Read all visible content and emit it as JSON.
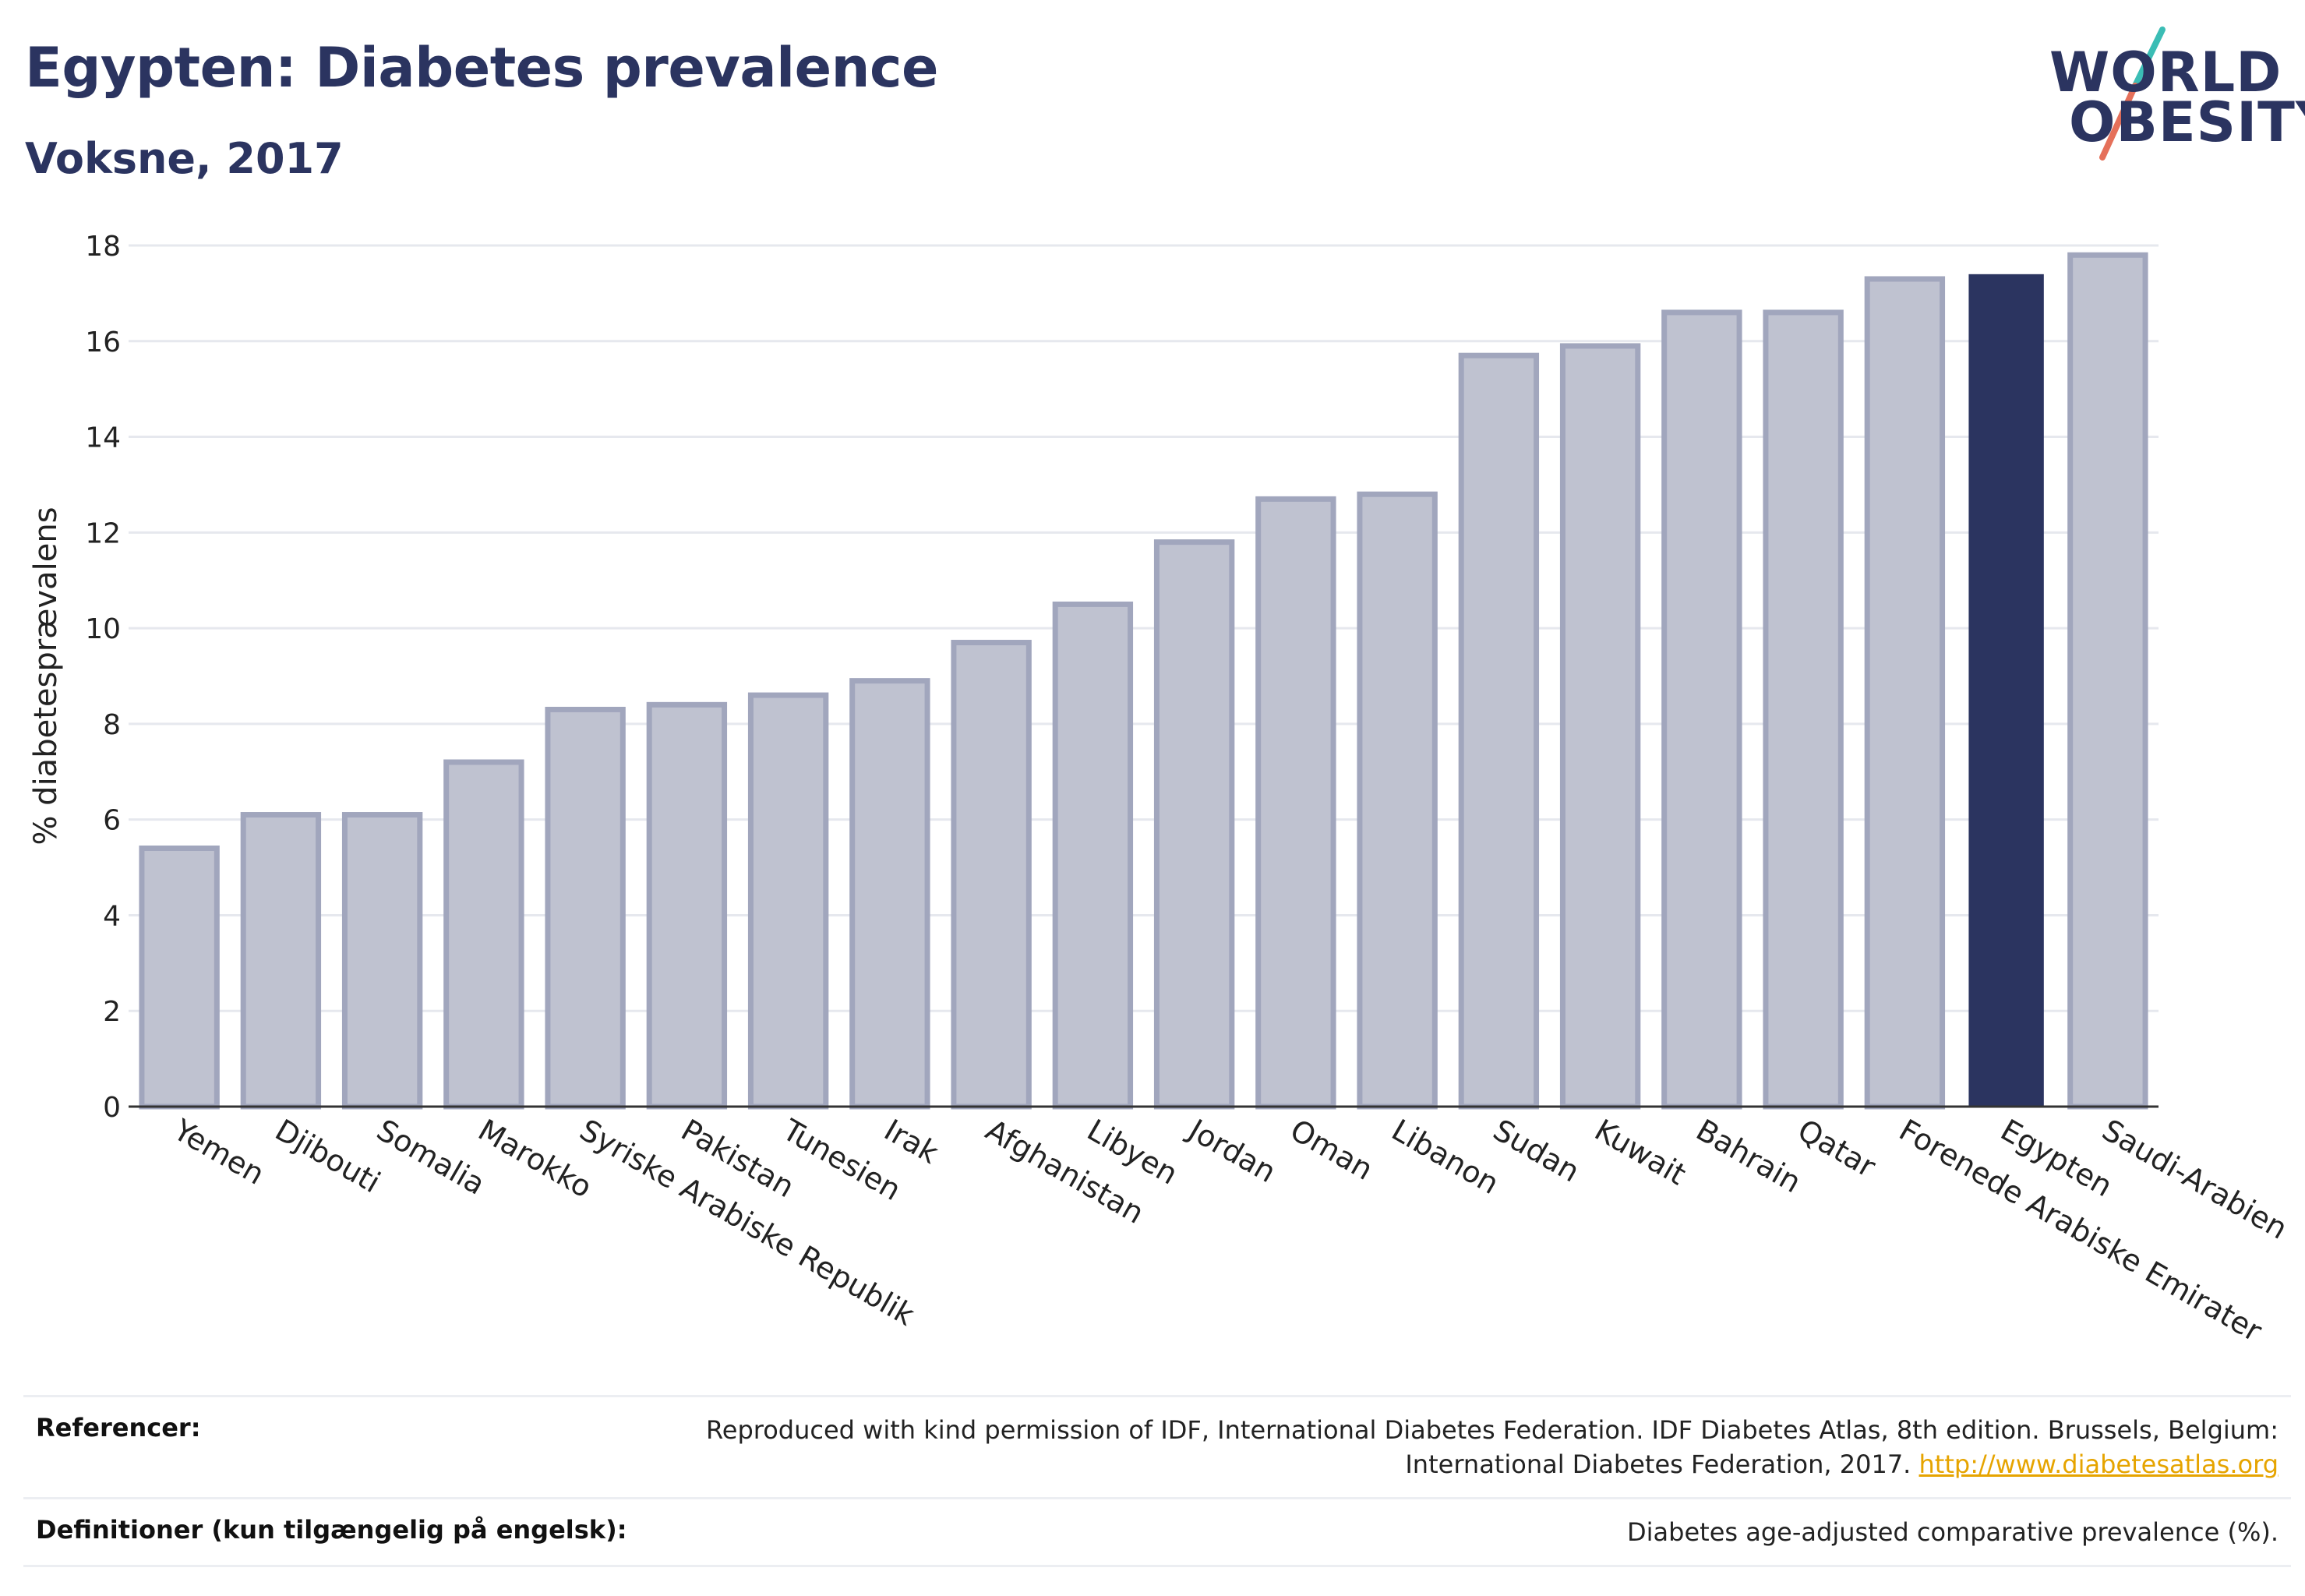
{
  "header": {
    "title": "Egypten: Diabetes prevalence",
    "subtitle": "Voksne, 2017"
  },
  "logo": {
    "line1": "WORLD",
    "line2": "OBESITY",
    "accent_teal": "#3bbdb5",
    "accent_coral": "#e5705a"
  },
  "chart_data": {
    "type": "bar",
    "ylabel": "% diabetesprævalens",
    "ylim": [
      0,
      18
    ],
    "yticks": [
      0,
      2,
      4,
      6,
      8,
      10,
      12,
      14,
      16,
      18
    ],
    "grid": true,
    "categories": [
      "Yemen",
      "Djibouti",
      "Somalia",
      "Marokko",
      "Syriske Arabiske Republik",
      "Pakistan",
      "Tunesien",
      "Irak",
      "Afghanistan",
      "Libyen",
      "Jordan",
      "Oman",
      "Libanon",
      "Sudan",
      "Kuwait",
      "Bahrain",
      "Qatar",
      "Forenede Arabiske Emirater",
      "Egypten",
      "Saudi-Arabien"
    ],
    "values": [
      5.4,
      6.1,
      6.1,
      7.2,
      8.3,
      8.4,
      8.6,
      8.9,
      9.7,
      10.5,
      11.8,
      12.7,
      12.8,
      15.7,
      15.9,
      16.6,
      16.6,
      17.3,
      17.4,
      17.8
    ],
    "highlight": "Egypten",
    "colors": {
      "bar": "#bfc2d0",
      "bar_edge": "#a1a6bd",
      "highlight": "#2b3460",
      "grid": "#e6e8ee",
      "axis": "#333333"
    }
  },
  "footer": {
    "references_label": "Referencer:",
    "references_text": "Reproduced with kind permission of IDF, International Diabetes Federation. IDF Diabetes Atlas, 8th edition. Brussels, Belgium: International Diabetes Federation, 2017.",
    "references_link": "http://www.diabetesatlas.org",
    "definitions_label": "Definitioner (kun tilgængelig på engelsk):",
    "definitions_text": "Diabetes age-adjusted comparative prevalence (%)."
  }
}
